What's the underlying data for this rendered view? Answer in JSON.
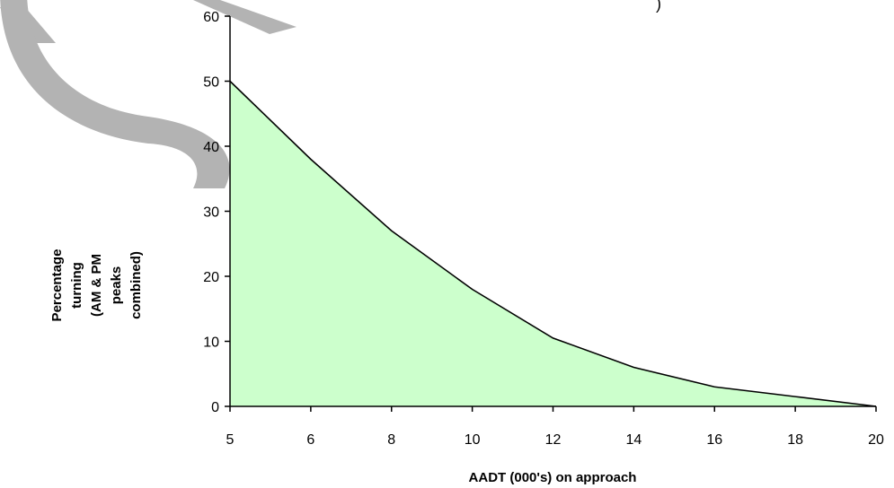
{
  "title_fragment": ")",
  "chart_data": {
    "type": "area",
    "title": "",
    "xlabel": "AADT (000's) on approach",
    "ylabel_lines": [
      "Percentage",
      "turning",
      "(AM & PM",
      "peaks",
      "combined)"
    ],
    "x_categories": [
      "5",
      "6",
      "8",
      "10",
      "12",
      "14",
      "16",
      "18",
      "20"
    ],
    "x": [
      5,
      6,
      8,
      10,
      12,
      14,
      16,
      18,
      20
    ],
    "values": [
      50,
      38,
      27,
      18,
      10.5,
      6,
      3,
      1.5,
      0
    ],
    "y_ticks": [
      0,
      10,
      20,
      30,
      40,
      50,
      60
    ],
    "y_tick_labels": [
      "0",
      "10",
      "20",
      "30",
      "40",
      "50",
      "60"
    ],
    "ylim": [
      0,
      60
    ],
    "grid": false,
    "legend": "none",
    "colors": {
      "fill": "#ccffcc",
      "line": "#000000",
      "axis": "#000000",
      "watermark": "#b3b3b3"
    }
  }
}
